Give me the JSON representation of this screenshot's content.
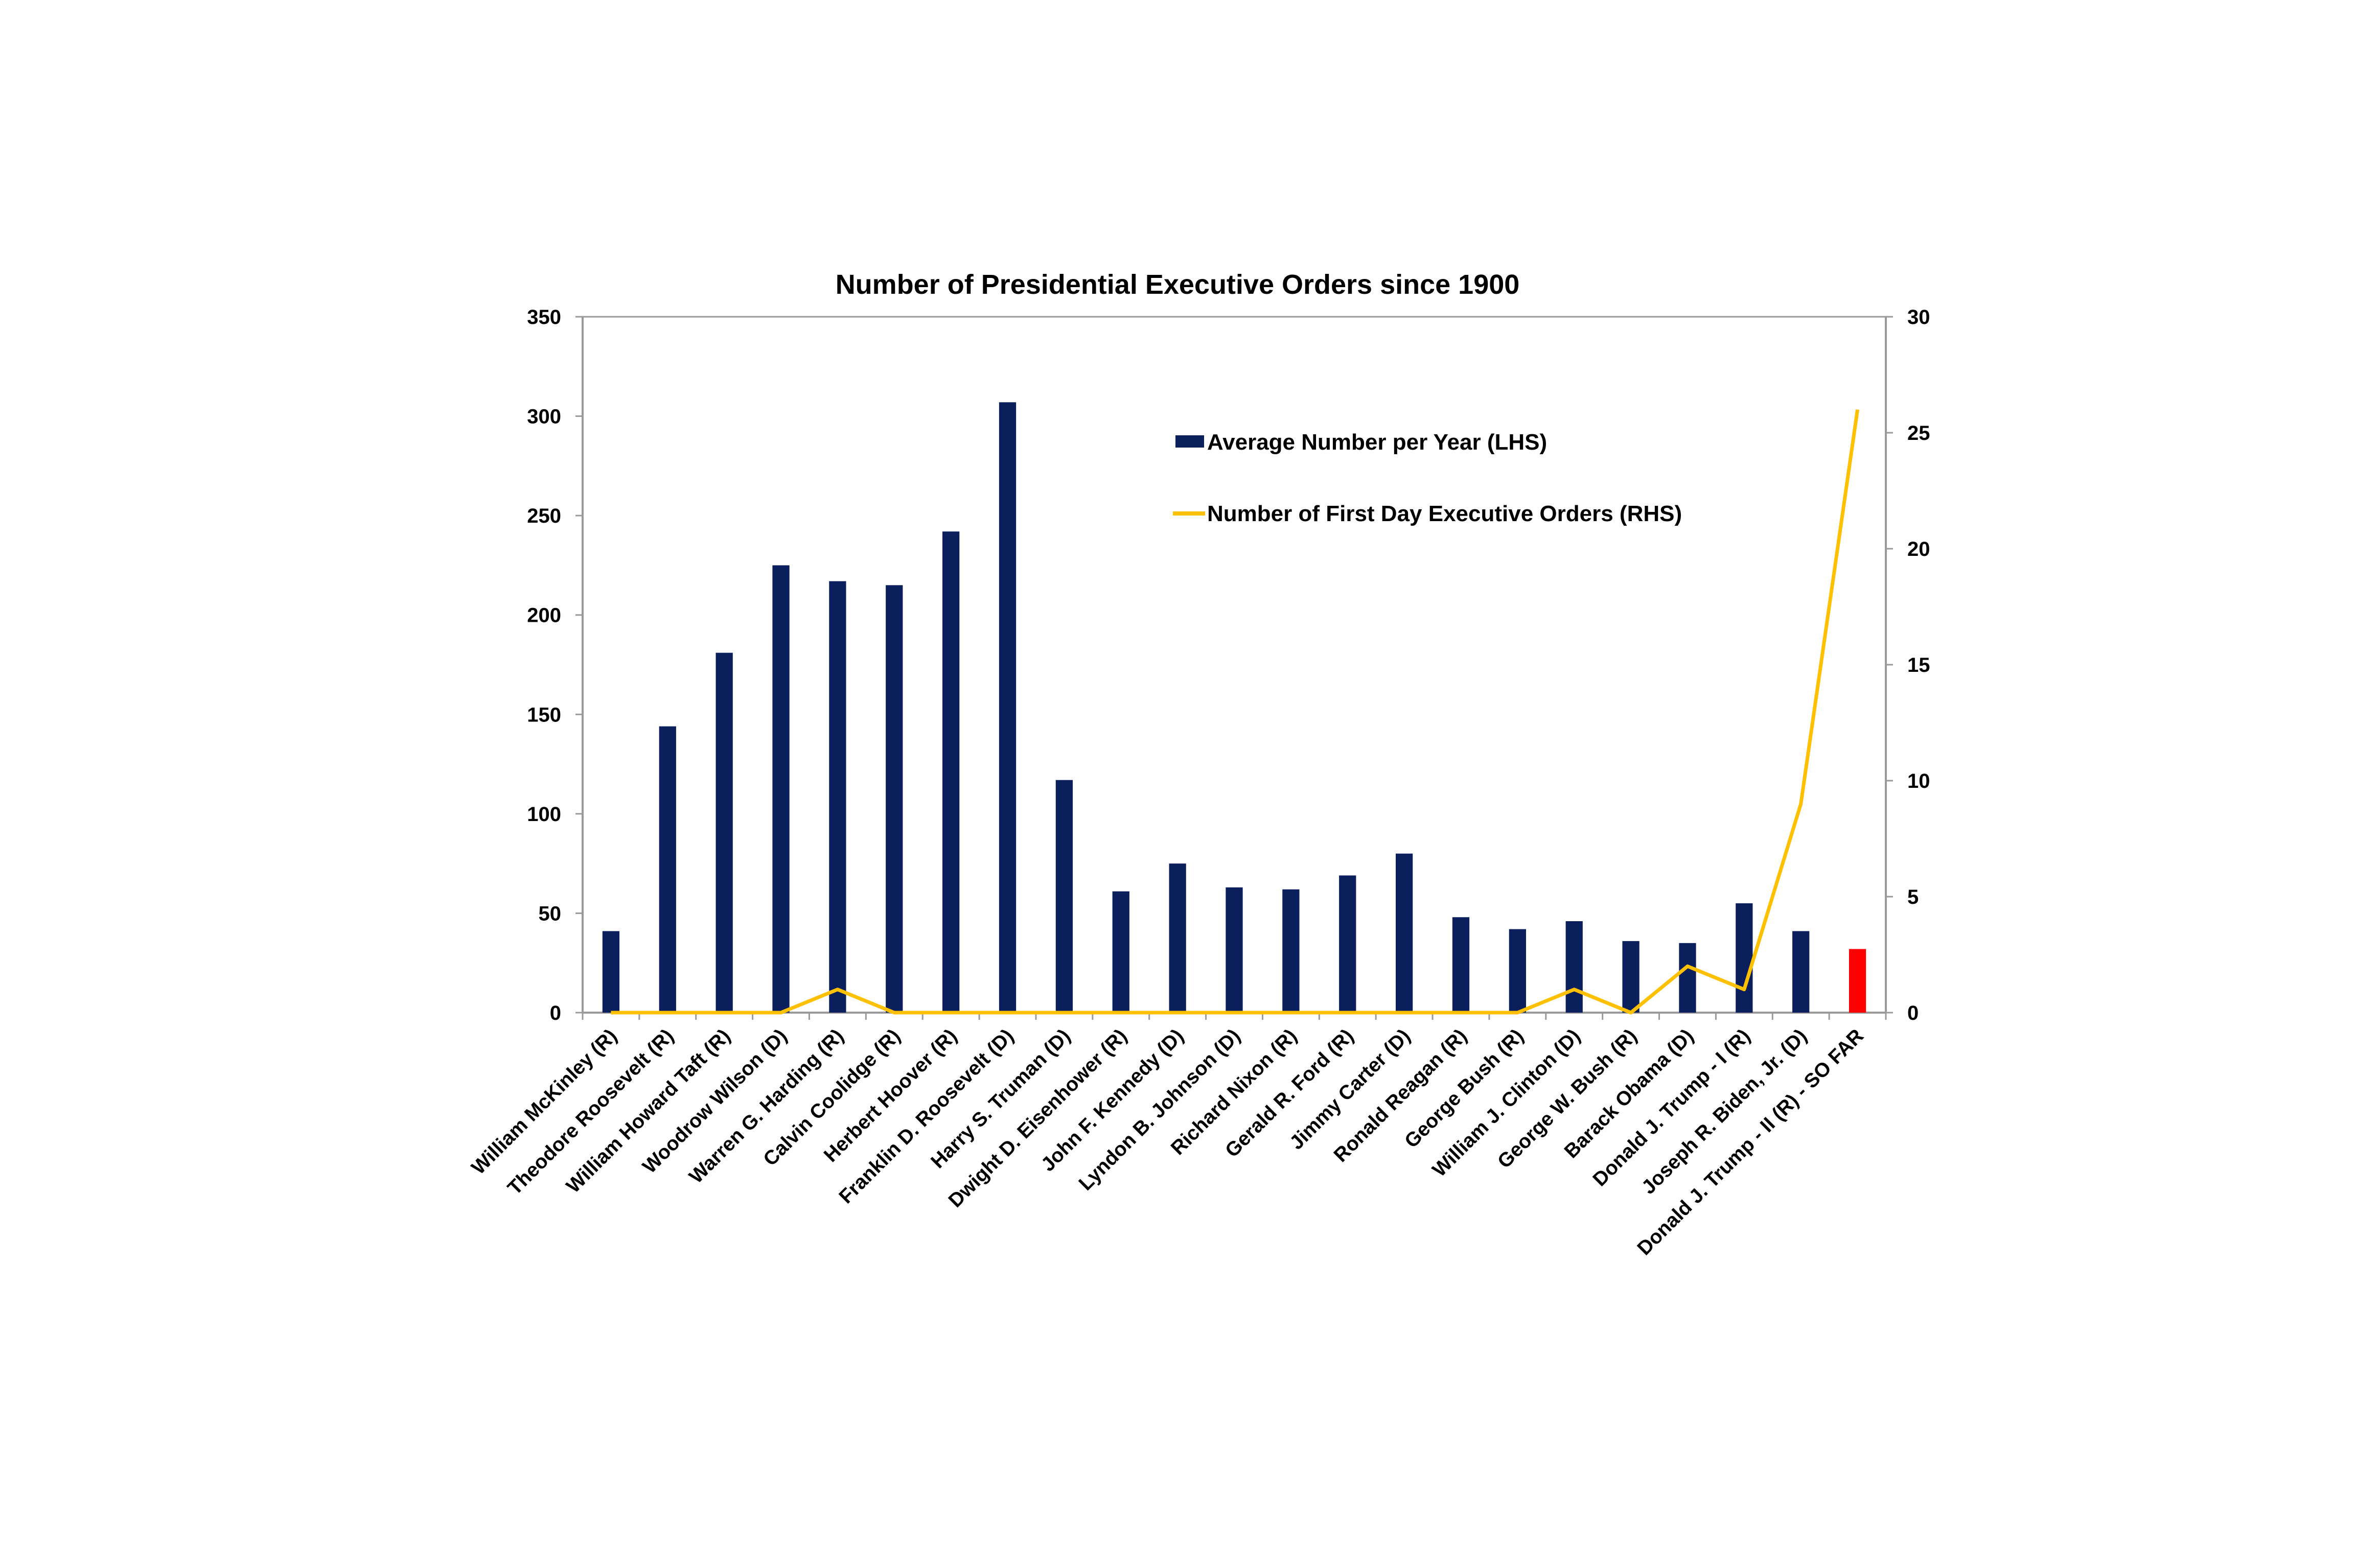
{
  "chart_data": {
    "type": "bar",
    "title": "Number of Presidential Executive Orders since 1900",
    "categories": [
      "William McKinley (R)",
      "Theodore Roosevelt (R)",
      "William Howard Taft (R)",
      "Woodrow Wilson (D)",
      "Warren G. Harding (R)",
      "Calvin Coolidge (R)",
      "Herbert Hoover (R)",
      "Franklin D. Roosevelt (D)",
      "Harry S. Truman (D)",
      "Dwight D. Eisenhower (R)",
      "John F. Kennedy (D)",
      "Lyndon B. Johnson (D)",
      "Richard Nixon (R)",
      "Gerald R. Ford (R)",
      "Jimmy Carter (D)",
      "Ronald Reagan (R)",
      "George Bush (R)",
      "William J. Clinton (D)",
      "George W. Bush (R)",
      "Barack Obama (D)",
      "Donald J. Trump - I (R)",
      "Joseph R. Biden, Jr. (D)",
      "Donald J. Trump - II (R) - SO FAR"
    ],
    "series": [
      {
        "name": "Average Number per Year (LHS)",
        "type": "bar",
        "axis": "left",
        "color": "#0a1f5c",
        "highlight_color": "#ff0000",
        "highlight_index": 22,
        "values": [
          41,
          144,
          181,
          225,
          217,
          215,
          242,
          307,
          117,
          61,
          75,
          63,
          62,
          69,
          80,
          48,
          42,
          46,
          36,
          35,
          55,
          41,
          32
        ]
      },
      {
        "name": "Number of First Day Executive Orders (RHS)",
        "type": "line",
        "axis": "right",
        "color": "#ffc000",
        "values": [
          0,
          0,
          0,
          0,
          1,
          0,
          0,
          0,
          0,
          0,
          0,
          0,
          0,
          0,
          0,
          0,
          0,
          1,
          0,
          2,
          1,
          9,
          26
        ]
      }
    ],
    "y_left": {
      "min": 0,
      "max": 350,
      "ticks": [
        "0",
        "50",
        "100",
        "150",
        "200",
        "250",
        "300",
        "350"
      ]
    },
    "y_right": {
      "min": 0,
      "max": 30,
      "ticks": [
        "0",
        "5",
        "10",
        "15",
        "20",
        "25",
        "30"
      ]
    },
    "grid": false,
    "legend_position": "top-right (inside plot)"
  }
}
